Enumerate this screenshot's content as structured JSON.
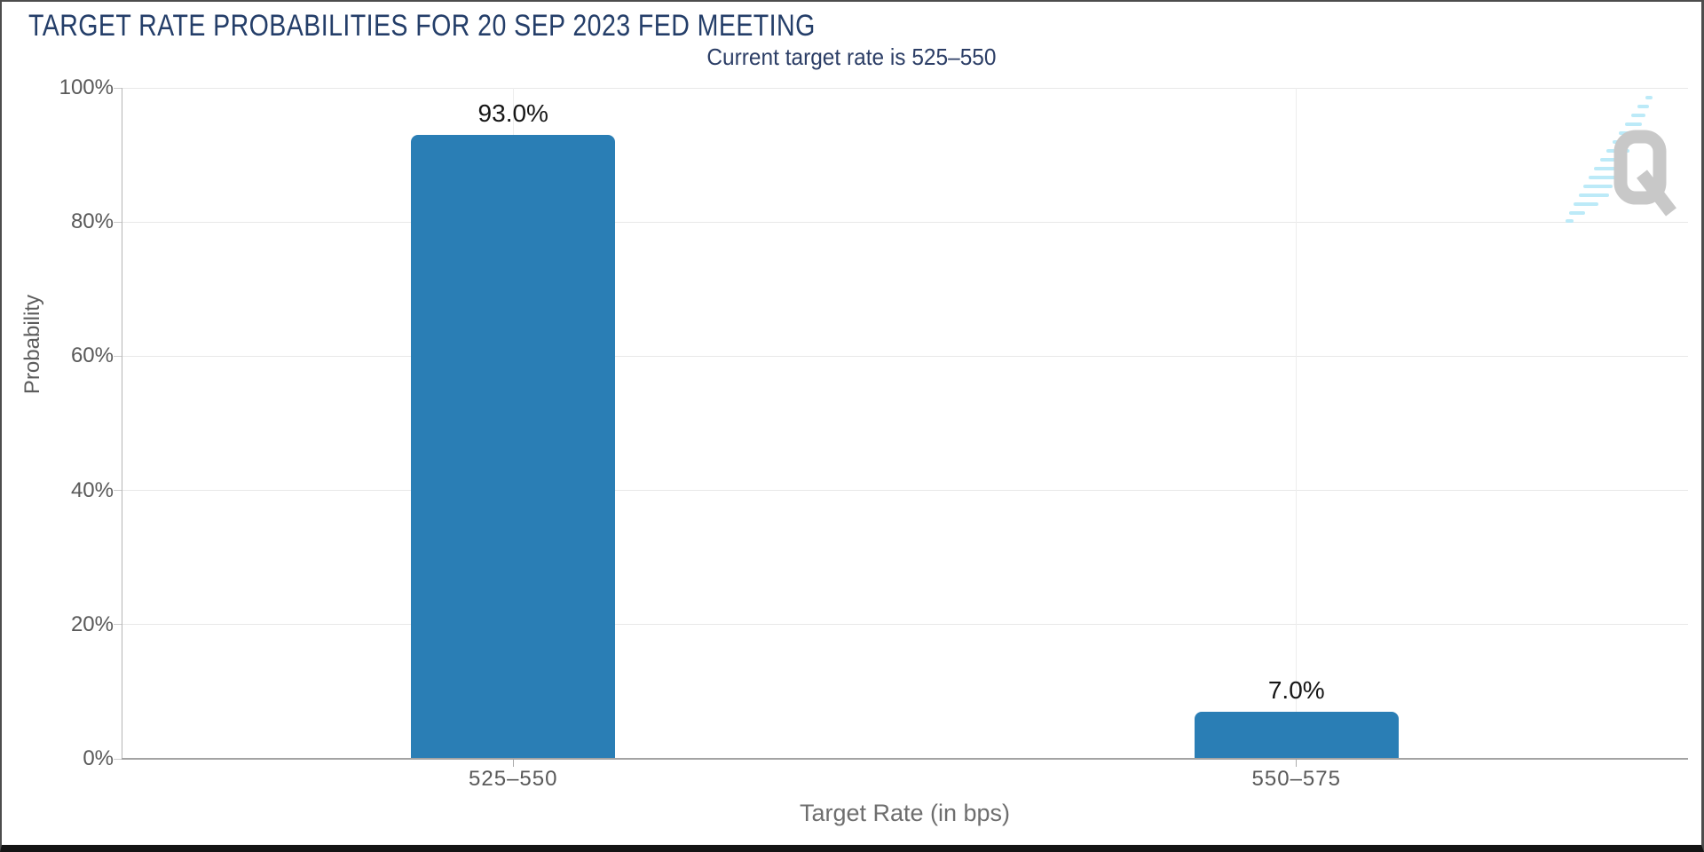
{
  "chart_data": {
    "type": "bar",
    "title": "TARGET RATE PROBABILITIES FOR 20 SEP 2023 FED MEETING",
    "subtitle": "Current target rate is 525–550",
    "categories": [
      "525–550",
      "550–575"
    ],
    "values": [
      93.0,
      7.0
    ],
    "value_labels": [
      "93.0%",
      "7.0%"
    ],
    "xlabel": "Target Rate (in bps)",
    "ylabel": "Probability",
    "ylim": [
      0,
      100
    ],
    "yticks": [
      "0%",
      "20%",
      "40%",
      "60%",
      "80%",
      "100%"
    ],
    "grid": true,
    "legend": "none",
    "bar_color": "#2a7eb5"
  },
  "watermark": {
    "icon": "quandl-q-logo",
    "q_color": "#c6c6c6",
    "dash_color": "#b9e9f8"
  },
  "frame": {
    "background": "#ffffff",
    "title_color": "#243e69",
    "subtitle_color": "#2c3e66"
  }
}
